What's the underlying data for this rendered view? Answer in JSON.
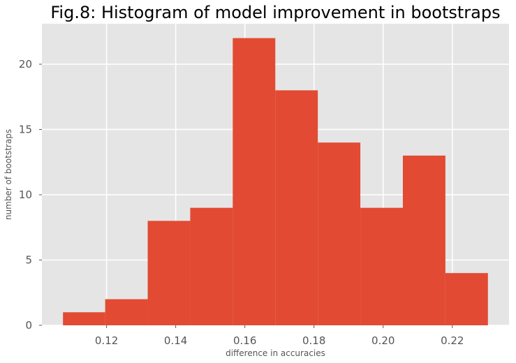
{
  "chart_data": {
    "type": "bar",
    "title": "Fig.8: Histogram of model improvement in bootstraps",
    "xlabel": "difference in accuracies",
    "ylabel": "number of bootstraps",
    "bin_edges": [
      0.1074,
      0.1196,
      0.1319,
      0.1442,
      0.1565,
      0.1688,
      0.1811,
      0.1934,
      0.2057,
      0.218,
      0.2303
    ],
    "values": [
      1,
      2,
      8,
      9,
      22,
      18,
      14,
      9,
      13,
      4
    ],
    "xlim": [
      0.1013,
      0.2364
    ],
    "ylim": [
      0,
      23.1
    ],
    "xticks": [
      0.12,
      0.14,
      0.16,
      0.18,
      0.2,
      0.22
    ],
    "xtick_labels": [
      "0.12",
      "0.14",
      "0.16",
      "0.18",
      "0.20",
      "0.22"
    ],
    "yticks": [
      0,
      5,
      10,
      15,
      20
    ],
    "ytick_labels": [
      "0",
      "5",
      "10",
      "15",
      "20"
    ],
    "grid": true,
    "colors": {
      "bar": "#E24A33",
      "background": "#E5E5E5",
      "grid": "#FFFFFF",
      "tick_text": "#555555"
    }
  }
}
